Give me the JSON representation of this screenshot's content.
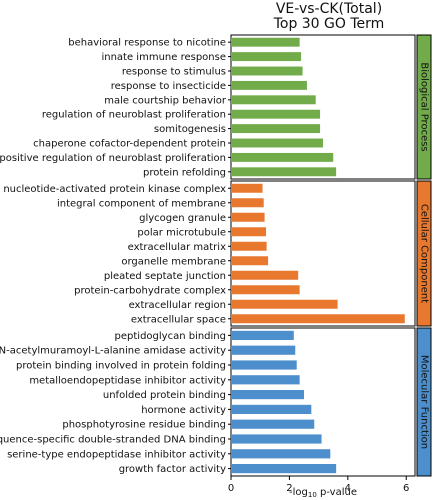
{
  "title_line1": "VE-vs-CK(Total)",
  "title_line2": "Top 30 GO Term",
  "xlabel_html": "-log10 p-value",
  "chart_data": {
    "type": "bar",
    "orientation": "horizontal",
    "title": "VE-vs-CK(Total) Top 30 GO Term",
    "xlabel": "-log10 p-value",
    "xlim": [
      0,
      6.3
    ],
    "xticks": [
      0,
      2,
      4,
      6
    ],
    "groups": [
      {
        "name": "Biological Process",
        "color": "#72ab4a",
        "side_color": "#72ab4a",
        "categories": [
          "behavioral response to nicotine",
          "innate immune response",
          "response to stimulus",
          "response to insecticide",
          "male courtship behavior",
          "regulation of neuroblast proliferation",
          "somitogenesis",
          "chaperone cofactor-dependent protein",
          "positive regulation of neuroblast proliferation",
          "protein refolding"
        ],
        "values": [
          2.35,
          2.4,
          2.45,
          2.6,
          2.9,
          3.05,
          3.05,
          3.15,
          3.5,
          3.6
        ]
      },
      {
        "name": "Cellular Component",
        "color": "#e9782f",
        "side_color": "#e9782f",
        "categories": [
          "nucleotide-activated protein kinase complex",
          "integral component of membrane",
          "glycogen granule",
          "polar microtubule",
          "extracellular matrix",
          "organelle membrane",
          "pleated septate junction",
          "protein-carbohydrate complex",
          "extracellular region",
          "extracellular space"
        ],
        "values": [
          1.08,
          1.12,
          1.15,
          1.2,
          1.22,
          1.27,
          2.3,
          2.35,
          3.65,
          5.95
        ]
      },
      {
        "name": "Molecular Function",
        "color": "#4d8fcc",
        "side_color": "#4d8fcc",
        "categories": [
          "peptidoglycan binding",
          "N-acetylmuramoyl-L-alanine amidase activity",
          "protein binding involved in protein folding",
          "metalloendopeptidase inhibitor activity",
          "unfolded protein binding",
          "hormone activity",
          "phosphotyrosine residue binding",
          "sequence-specific double-stranded DNA binding",
          "serine-type endopeptidase inhibitor activity",
          "growth factor activity"
        ],
        "values": [
          2.15,
          2.2,
          2.25,
          2.35,
          2.5,
          2.75,
          2.85,
          3.1,
          3.4,
          3.6
        ]
      }
    ]
  }
}
